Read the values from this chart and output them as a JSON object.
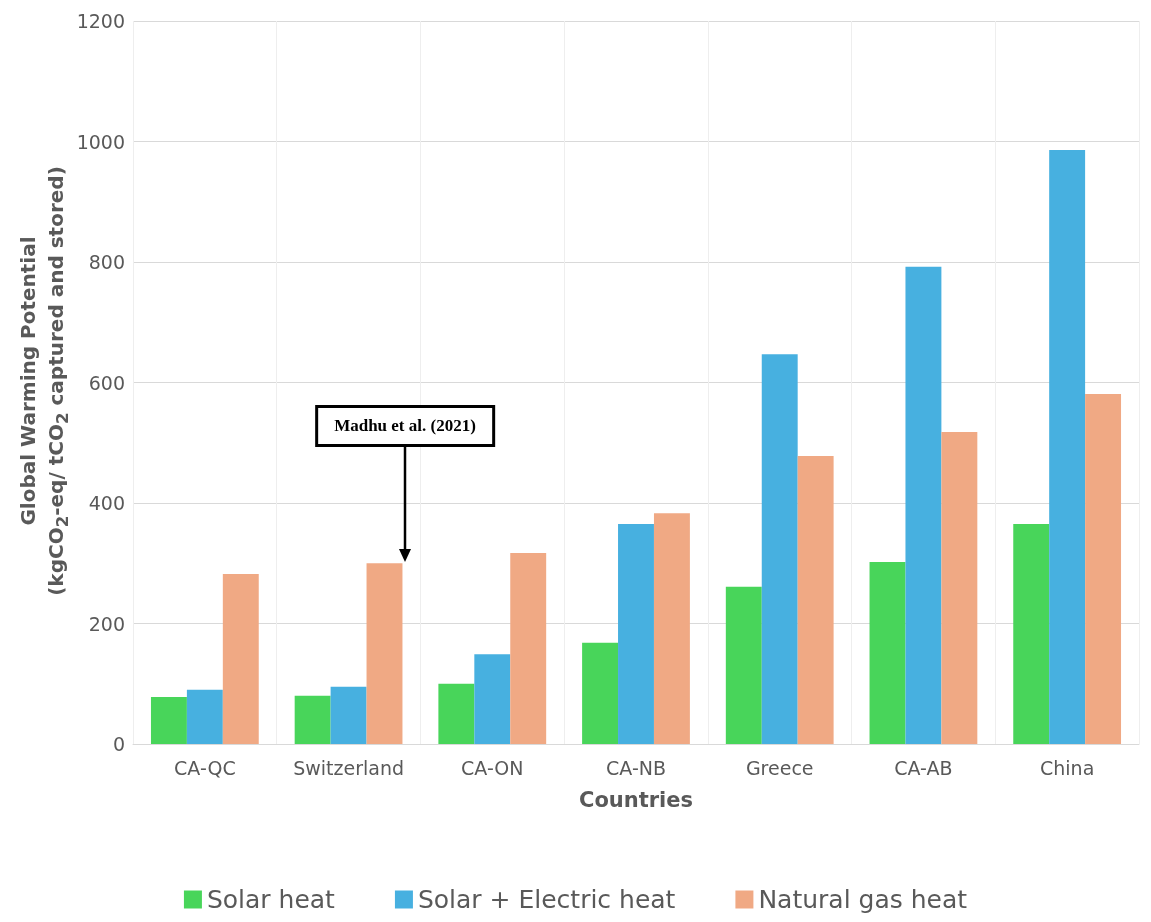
{
  "chart_data": {
    "type": "bar",
    "xlabel": "Countries",
    "ylabel": "Global Warming Potential\n(kgCO$_{2}$-eq/ tCO$_{2}$ captured and stored)",
    "categories": [
      "CA-QC",
      "Switzerland",
      "CA-ON",
      "CA-NB",
      "Greece",
      "CA-AB",
      "China"
    ],
    "series": [
      {
        "name": "Solar heat",
        "color": "#48d55a",
        "values": [
          78,
          80,
          100,
          168,
          261,
          302,
          365
        ]
      },
      {
        "name": "Solar + Electric heat",
        "color": "#47b0e0",
        "values": [
          90,
          95,
          149,
          365,
          647,
          792,
          986
        ]
      },
      {
        "name": "Natural gas heat",
        "color": "#f0a984",
        "values": [
          282,
          300,
          317,
          383,
          478,
          518,
          581
        ]
      }
    ],
    "ylim": [
      0,
      1200
    ],
    "yticks": [
      0,
      200,
      400,
      600,
      800,
      1000,
      1200
    ],
    "grid": true,
    "legend": "bottom",
    "annotations": [
      "Madhu et al. (2021)"
    ]
  }
}
